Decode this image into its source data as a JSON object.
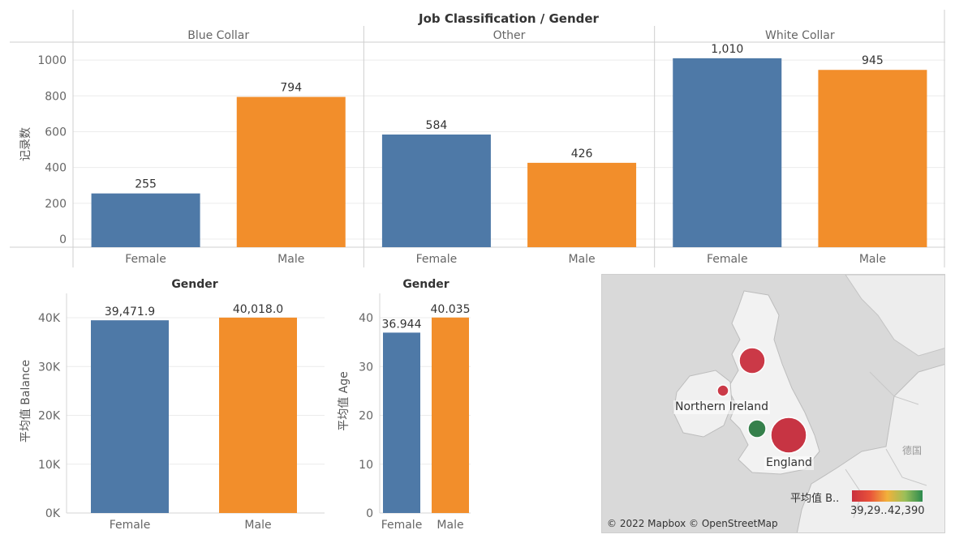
{
  "chart_data": [
    {
      "type": "bar",
      "title": "Job Classification / Gender",
      "ylabel": "记录数",
      "ylim": [
        0,
        1100
      ],
      "yticks": [
        0,
        200,
        400,
        600,
        800,
        1000
      ],
      "panels": [
        {
          "name": "Blue Collar",
          "categories": [
            "Female",
            "Male"
          ],
          "values": [
            255,
            794
          ],
          "labels": [
            "255",
            "794"
          ]
        },
        {
          "name": "Other",
          "categories": [
            "Female",
            "Male"
          ],
          "values": [
            584,
            426
          ],
          "labels": [
            "584",
            "426"
          ]
        },
        {
          "name": "White Collar",
          "categories": [
            "Female",
            "Male"
          ],
          "values": [
            1010,
            945
          ],
          "labels": [
            "1,010",
            "945"
          ]
        }
      ]
    },
    {
      "type": "bar",
      "title": "Gender",
      "ylabel": "平均值 Balance",
      "ylim": [
        0,
        40000
      ],
      "yticks": [
        "0K",
        "10K",
        "20K",
        "30K",
        "40K"
      ],
      "categories": [
        "Female",
        "Male"
      ],
      "values": [
        39471.9,
        40018.0
      ],
      "labels": [
        "39,471.9",
        "40,018.0"
      ]
    },
    {
      "type": "bar",
      "title": "Gender",
      "ylabel": "平均值 Age",
      "ylim": [
        0,
        40
      ],
      "yticks": [
        "0",
        "10",
        "20",
        "30",
        "40"
      ],
      "categories": [
        "Female",
        "Male"
      ],
      "values": [
        36.944,
        40.035
      ],
      "labels": [
        "36.944",
        "40.035"
      ]
    }
  ],
  "colors": {
    "female": "#4e79a7",
    "male": "#f28e2b"
  },
  "map": {
    "points": [
      {
        "label": "",
        "color": "#c9303e"
      },
      {
        "label": "Northern Ireland",
        "color": "#c9303e"
      },
      {
        "label": "",
        "color": "#2b7a43"
      },
      {
        "label": "England",
        "color": "#c52a3a"
      }
    ],
    "country_label": "德国",
    "legend": {
      "title": "平均值 B..",
      "min": "39,29..",
      "max": "42,390"
    },
    "credit": "© 2022 Mapbox © OpenStreetMap"
  }
}
